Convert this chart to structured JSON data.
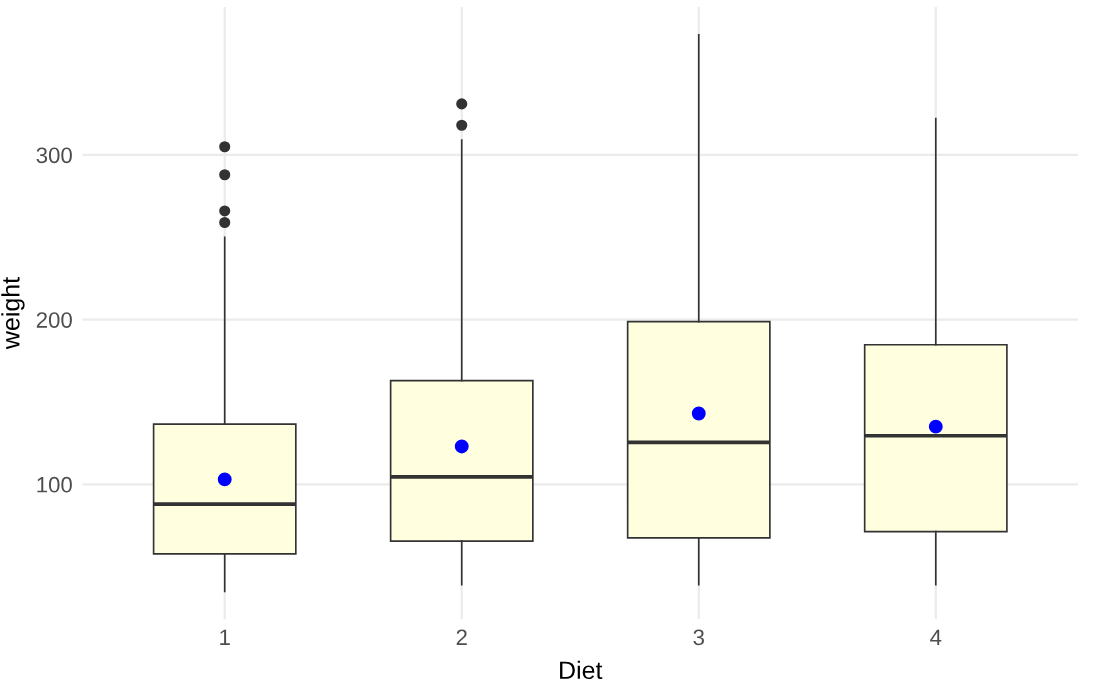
{
  "chart_data": {
    "type": "box",
    "xlabel": "Diet",
    "ylabel": "weight",
    "categories": [
      "1",
      "2",
      "3",
      "4"
    ],
    "ylim": [
      18.1,
      389.9
    ],
    "yticks": [
      100,
      200,
      300
    ],
    "grid": true,
    "series": [
      {
        "color": "#ffffe0",
        "boxes": [
          {
            "low": 35,
            "q1": 57.75,
            "median": 88,
            "q3": 136.5,
            "high": 250,
            "outliers": [
              259,
              266,
              288,
              305
            ]
          },
          {
            "low": 39,
            "q1": 65.5,
            "median": 104.5,
            "q3": 163,
            "high": 309,
            "outliers": [
              318,
              331
            ]
          },
          {
            "low": 39,
            "q1": 67.5,
            "median": 125.5,
            "q3": 198.75,
            "high": 373
          },
          {
            "low": 39,
            "q1": 71.25,
            "median": 129.5,
            "q3": 184.75,
            "high": 322
          }
        ]
      },
      {
        "type": "scatter",
        "color": "#0000ff",
        "marker": "circle",
        "x": [
          "1",
          "2",
          "3",
          "4"
        ],
        "values": [
          103,
          123,
          143,
          135
        ]
      }
    ]
  }
}
